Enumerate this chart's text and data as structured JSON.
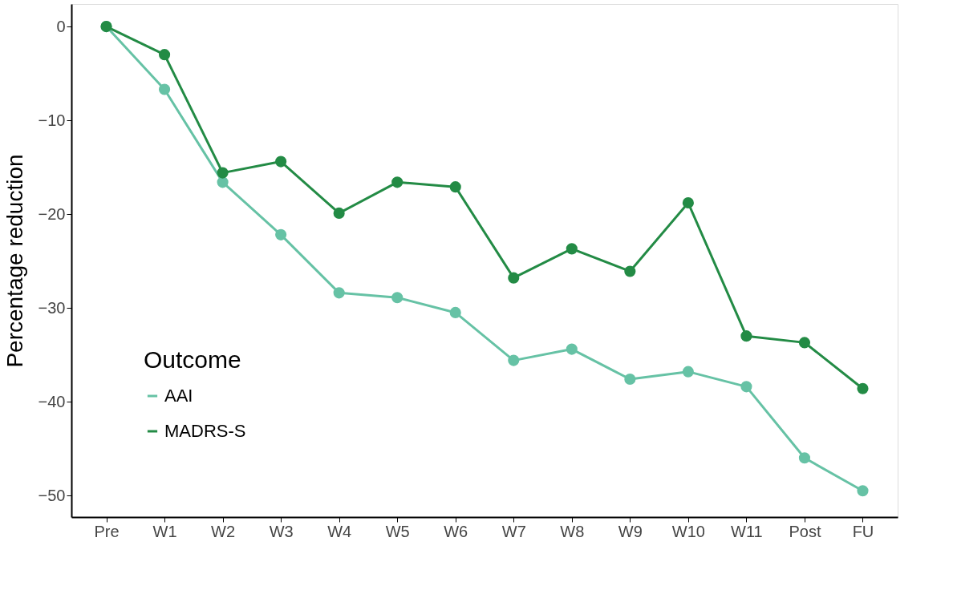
{
  "chart_data": {
    "type": "line",
    "ylabel": "Percentage reduction",
    "legend_title": "Outcome",
    "categories": [
      "Pre",
      "W1",
      "W2",
      "W3",
      "W4",
      "W5",
      "W6",
      "W7",
      "W8",
      "W9",
      "W10",
      "W11",
      "Post",
      "FU"
    ],
    "series": [
      {
        "name": "AAI",
        "color": "#66c2a5",
        "values": [
          0,
          -6.7,
          -16.6,
          -22.2,
          -28.4,
          -28.9,
          -30.5,
          -35.6,
          -34.4,
          -37.6,
          -36.8,
          -38.4,
          -46.0,
          -49.5
        ]
      },
      {
        "name": "MADRS-S",
        "color": "#238b45",
        "values": [
          0,
          -3.0,
          -15.6,
          -14.4,
          -19.9,
          -16.6,
          -17.1,
          -26.8,
          -23.7,
          -26.1,
          -18.8,
          -33.0,
          -33.7,
          -38.6
        ]
      }
    ],
    "ylim": [
      -52.3,
      2.4
    ],
    "yticks": [
      0,
      -10,
      -20,
      -30,
      -40,
      -50
    ],
    "grid": false,
    "legend": "bottom left",
    "marker": "circle",
    "line_style": "solid"
  }
}
